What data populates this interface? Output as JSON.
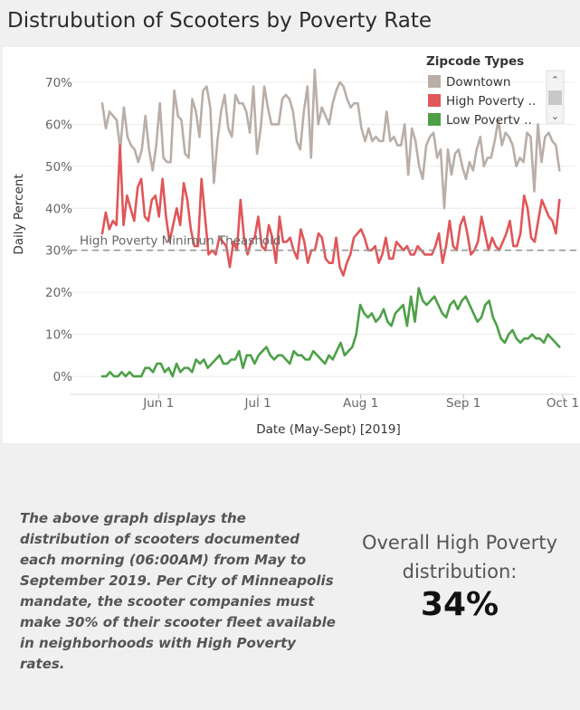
{
  "title": "Distrubution of Scooters by Poverty Rate",
  "chart_data": {
    "type": "line",
    "title": "Distrubution of Scooters by Poverty Rate",
    "xlabel": "Date (May-Sept) [2019]",
    "ylabel": "Daily Percent",
    "x_start": "2019-05-15",
    "x_end": "2019-09-30",
    "xticks": [
      {
        "date": "2019-06-01",
        "label": "Jun 1"
      },
      {
        "date": "2019-07-01",
        "label": "Jul 1"
      },
      {
        "date": "2019-08-01",
        "label": "Aug 1"
      },
      {
        "date": "2019-09-01",
        "label": "Sep 1"
      },
      {
        "date": "2019-10-01",
        "label": "Oct 1"
      }
    ],
    "ylim": [
      -3,
      73
    ],
    "yticks": [
      0,
      10,
      20,
      30,
      40,
      50,
      60,
      70
    ],
    "ytick_labels": [
      "0%",
      "10%",
      "20%",
      "30%",
      "40%",
      "50%",
      "60%",
      "70%"
    ],
    "grid": "horizontal",
    "legend": {
      "title": "Zipcode Types",
      "position": "top-right"
    },
    "reference_line": {
      "value": 30,
      "label": "High Poverty Minimun Theashold"
    },
    "series": [
      {
        "name": "Downtown",
        "legend_label": "Downtown",
        "color": "#b9aea8",
        "values": [
          65,
          59,
          63,
          62,
          61,
          54,
          64,
          57,
          55,
          54,
          51,
          54,
          62,
          54,
          49,
          55,
          65,
          52,
          51,
          51,
          68,
          62,
          61,
          53,
          52,
          66,
          63,
          57,
          68,
          69,
          64,
          46,
          56,
          63,
          67,
          59,
          57,
          67,
          65,
          65,
          63,
          58,
          69,
          53,
          59,
          69,
          64,
          60,
          60,
          60,
          66,
          67,
          66,
          63,
          56,
          54,
          63,
          69,
          52,
          73,
          60,
          64,
          62,
          60,
          65,
          68,
          70,
          69,
          66,
          64,
          65,
          65,
          59,
          56,
          59,
          56,
          57,
          56,
          56,
          63,
          56,
          57,
          55,
          55,
          60,
          48,
          59,
          56,
          50,
          47,
          55,
          57,
          58,
          52,
          54,
          40,
          54,
          48,
          53,
          54,
          50,
          47,
          51,
          49,
          54,
          57,
          50,
          52,
          52,
          56,
          61,
          55,
          58,
          57,
          55,
          50,
          52,
          51,
          58,
          57,
          44,
          60,
          51,
          57,
          58,
          56,
          55,
          49
        ]
      },
      {
        "name": "High Poverty Rate",
        "legend_label": "High Poverty ..",
        "color": "#e05659",
        "values": [
          34,
          39,
          35,
          37,
          36,
          55,
          36,
          43,
          40,
          37,
          45,
          47,
          38,
          37,
          42,
          43,
          38,
          47,
          38,
          32,
          36,
          40,
          36,
          46,
          42,
          35,
          31,
          31,
          47,
          38,
          29,
          30,
          29,
          33,
          32,
          31,
          26,
          32,
          30,
          42,
          33,
          29,
          32,
          33,
          38,
          31,
          30,
          36,
          33,
          27,
          38,
          32,
          32,
          33,
          30,
          28,
          35,
          32,
          27,
          30,
          30,
          34,
          33,
          28,
          27,
          27,
          33,
          26,
          24,
          27,
          29,
          33,
          34,
          35,
          33,
          30,
          30,
          31,
          27,
          29,
          33,
          28,
          28,
          32,
          31,
          30,
          31,
          29,
          29,
          31,
          30,
          29,
          29,
          29,
          31,
          34,
          27,
          31,
          37,
          31,
          30,
          36,
          38,
          34,
          29,
          30,
          32,
          38,
          34,
          30,
          33,
          31,
          30,
          32,
          34,
          37,
          31,
          31,
          34,
          43,
          40,
          33,
          32,
          37,
          42,
          40,
          38,
          37,
          34,
          42
        ]
      },
      {
        "name": "Low Poverty Rate",
        "legend_label": "Low Povertv ..",
        "color": "#4ea048",
        "values": [
          0,
          0,
          1,
          0,
          0,
          1,
          0,
          1,
          0,
          0,
          0,
          2,
          2,
          1,
          3,
          3,
          1,
          2,
          0,
          3,
          1,
          2,
          2,
          1,
          4,
          3,
          4,
          2,
          3,
          4,
          5,
          3,
          3,
          4,
          4,
          6,
          2,
          5,
          5,
          3,
          5,
          6,
          7,
          5,
          4,
          5,
          5,
          4,
          3,
          6,
          5,
          5,
          4,
          4,
          6,
          5,
          4,
          3,
          5,
          4,
          6,
          8,
          5,
          6,
          7,
          10,
          17,
          15,
          14,
          15,
          13,
          14,
          16,
          13,
          12,
          15,
          16,
          17,
          12,
          19,
          13,
          21,
          18,
          17,
          18,
          19,
          17,
          15,
          14,
          17,
          18,
          16,
          18,
          19,
          17,
          15,
          13,
          14,
          17,
          18,
          14,
          12,
          9,
          8,
          10,
          11,
          9,
          8,
          9,
          9,
          10,
          9,
          9,
          8,
          10,
          9,
          8,
          7
        ]
      }
    ]
  },
  "note": "The above graph displays the distribution of scooters documented each morning (06:00AM)  from May to September 2019. Per City of Minneapolis mandate, the scooter companies must make 30% of their scooter fleet available in neighborhoods with High Poverty rates.",
  "kpi": {
    "label": "Overall High Poverty distribution:",
    "value": "34%"
  }
}
